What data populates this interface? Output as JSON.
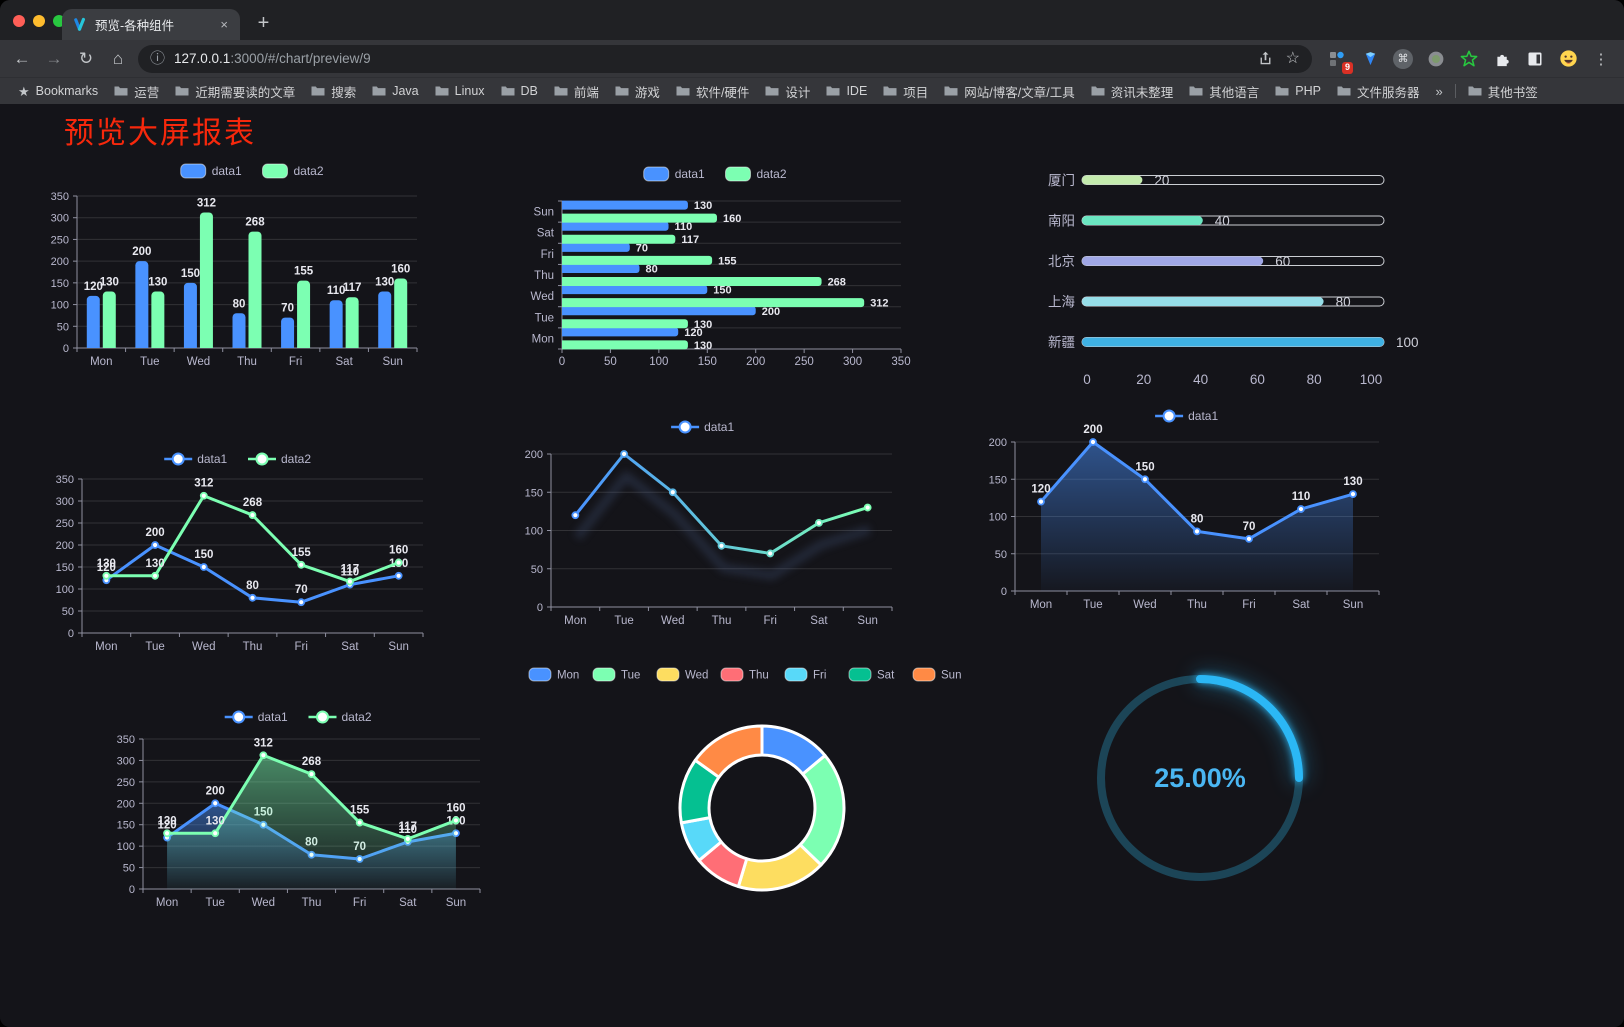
{
  "browser": {
    "tab": {
      "title": "预览-各种组件",
      "close_glyph": "×"
    },
    "new_tab_glyph": "+",
    "url": {
      "host": "127.0.0.1",
      "rest": ":3000/#/chart/preview/9"
    },
    "extension_badge": "9",
    "icons": {
      "back": "←",
      "forward": "→",
      "reload": "↻",
      "home": "⌂",
      "info": "ⓘ",
      "star": "☆",
      "menu": "⋮",
      "bookmarks_star": "★",
      "cmd": "⌘"
    },
    "bookmarks_bar": {
      "label": "Bookmarks",
      "folders": [
        "运营",
        "近期需要读的文章",
        "搜索",
        "Java",
        "Linux",
        "DB",
        "前端",
        "游戏",
        "软件/硬件",
        "设计",
        "IDE",
        "项目",
        "网站/博客/文章/工具",
        "资讯未整理",
        "其他语言",
        "PHP",
        "文件服务器"
      ],
      "overflow": "»",
      "other": "其他书签"
    }
  },
  "page": {
    "title": "预览大屏报表",
    "title_color": "#f7280c",
    "background": "#141419"
  },
  "chart_data": [
    {
      "id": "bar-vertical",
      "type": "bar",
      "categories": [
        "Mon",
        "Tue",
        "Wed",
        "Thu",
        "Fri",
        "Sat",
        "Sun"
      ],
      "series": [
        {
          "name": "data1",
          "color": "#4992ff",
          "values": [
            120,
            200,
            150,
            80,
            70,
            110,
            130
          ]
        },
        {
          "name": "data2",
          "color": "#7cffb2",
          "values": [
            130,
            130,
            312,
            268,
            155,
            117,
            160
          ]
        }
      ],
      "ylim": [
        0,
        350
      ],
      "ytick_step": 50,
      "value_labels": true,
      "legend_position": "top",
      "grid": true
    },
    {
      "id": "bar-horizontal",
      "type": "hbar",
      "categories": [
        "Mon",
        "Tue",
        "Wed",
        "Thu",
        "Fri",
        "Sat",
        "Sun"
      ],
      "series": [
        {
          "name": "data1",
          "color": "#4992ff",
          "values": [
            120,
            200,
            150,
            80,
            70,
            110,
            130
          ]
        },
        {
          "name": "data2",
          "color": "#7cffb2",
          "values": [
            130,
            130,
            312,
            268,
            155,
            117,
            160
          ]
        }
      ],
      "xlim": [
        0,
        350
      ],
      "xtick_step": 50,
      "value_labels": true,
      "legend_position": "top",
      "grid": true
    },
    {
      "id": "city-progress",
      "type": "progress",
      "max": 100,
      "ticks": [
        0,
        20,
        40,
        60,
        80,
        100
      ],
      "items": [
        {
          "label": "厦门",
          "value": 20,
          "color": "#c4ebad"
        },
        {
          "label": "南阳",
          "value": 40,
          "color": "#6be6c1"
        },
        {
          "label": "北京",
          "value": 60,
          "color": "#a0a7e6"
        },
        {
          "label": "上海",
          "value": 80,
          "color": "#96dee8"
        },
        {
          "label": "新疆",
          "value": 100,
          "color": "#3fb1e3"
        }
      ]
    },
    {
      "id": "line-two",
      "type": "line",
      "categories": [
        "Mon",
        "Tue",
        "Wed",
        "Thu",
        "Fri",
        "Sat",
        "Sun"
      ],
      "series": [
        {
          "name": "data1",
          "color": "#4992ff",
          "values": [
            120,
            200,
            150,
            80,
            70,
            110,
            130
          ]
        },
        {
          "name": "data2",
          "color": "#7cffb2",
          "values": [
            130,
            130,
            312,
            268,
            155,
            117,
            160
          ]
        }
      ],
      "ylim": [
        0,
        350
      ],
      "ytick_step": 50,
      "value_labels": true,
      "legend_position": "top",
      "grid": true
    },
    {
      "id": "line-gradient",
      "type": "line",
      "categories": [
        "Mon",
        "Tue",
        "Wed",
        "Thu",
        "Fri",
        "Sat",
        "Sun"
      ],
      "series": [
        {
          "name": "data1",
          "color": "#4992ff",
          "color_end": "#7cffb2",
          "values": [
            120,
            200,
            150,
            80,
            70,
            110,
            130
          ]
        }
      ],
      "ylim": [
        0,
        200
      ],
      "ytick_step": 50,
      "value_labels": false,
      "shadow": true,
      "legend_position": "top",
      "grid": true
    },
    {
      "id": "area-one",
      "type": "area",
      "categories": [
        "Mon",
        "Tue",
        "Wed",
        "Thu",
        "Fri",
        "Sat",
        "Sun"
      ],
      "series": [
        {
          "name": "data1",
          "color": "#4992ff",
          "values": [
            120,
            200,
            150,
            80,
            70,
            110,
            130
          ]
        }
      ],
      "ylim": [
        0,
        200
      ],
      "ytick_step": 50,
      "value_labels": true,
      "legend_position": "top",
      "grid": true
    },
    {
      "id": "area-two",
      "type": "area",
      "categories": [
        "Mon",
        "Tue",
        "Wed",
        "Thu",
        "Fri",
        "Sat",
        "Sun"
      ],
      "series": [
        {
          "name": "data1",
          "color": "#4992ff",
          "values": [
            120,
            200,
            150,
            80,
            70,
            110,
            130
          ]
        },
        {
          "name": "data2",
          "color": "#7cffb2",
          "values": [
            130,
            130,
            312,
            268,
            155,
            117,
            160
          ]
        }
      ],
      "ylim": [
        0,
        350
      ],
      "ytick_step": 50,
      "value_labels": true,
      "legend_position": "top",
      "grid": true
    },
    {
      "id": "weekday-donut",
      "type": "donut",
      "items": [
        {
          "label": "Mon",
          "value": 120,
          "color": "#4992ff"
        },
        {
          "label": "Tue",
          "value": 200,
          "color": "#7cffb2"
        },
        {
          "label": "Wed",
          "value": 150,
          "color": "#fddd60"
        },
        {
          "label": "Thu",
          "value": 80,
          "color": "#ff6e76"
        },
        {
          "label": "Fri",
          "value": 70,
          "color": "#58d9f9"
        },
        {
          "label": "Sat",
          "value": 110,
          "color": "#05c091"
        },
        {
          "label": "Sun",
          "value": 130,
          "color": "#ff8a45"
        }
      ],
      "legend_position": "top"
    },
    {
      "id": "ring-progress",
      "type": "gauge",
      "value": 25,
      "label": "25.00%",
      "color": "#2bb7f5",
      "track_color": "#1c4557",
      "text_color": "#4ab6f2"
    }
  ]
}
